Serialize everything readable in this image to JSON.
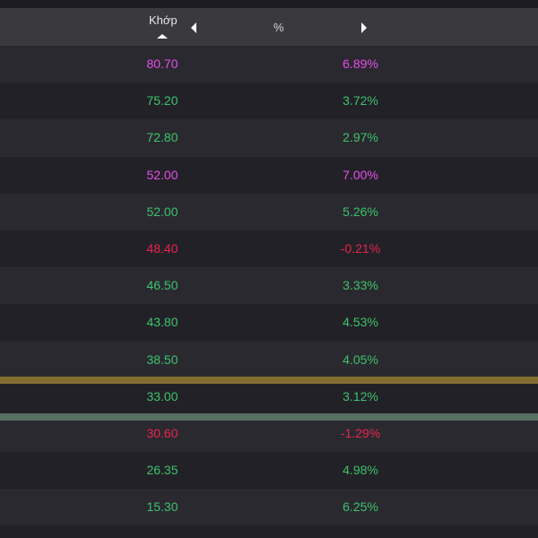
{
  "header": {
    "khop_label": "Khớp",
    "pct_label": "%"
  },
  "rows": [
    {
      "price": "80.70",
      "pct": "6.89%",
      "status": "ceil"
    },
    {
      "price": "75.20",
      "pct": "3.72%",
      "status": "up"
    },
    {
      "price": "72.80",
      "pct": "2.97%",
      "status": "up"
    },
    {
      "price": "52.00",
      "pct": "7.00%",
      "status": "ceil"
    },
    {
      "price": "52.00",
      "pct": "5.26%",
      "status": "up"
    },
    {
      "price": "48.40",
      "pct": "-0.21%",
      "status": "down"
    },
    {
      "price": "46.50",
      "pct": "3.33%",
      "status": "up"
    },
    {
      "price": "43.80",
      "pct": "4.53%",
      "status": "up"
    },
    {
      "price": "38.50",
      "pct": "4.05%",
      "status": "up"
    },
    {
      "price": "33.00",
      "pct": "3.12%",
      "status": "up"
    },
    {
      "price": "30.60",
      "pct": "-1.29%",
      "status": "down"
    },
    {
      "price": "26.35",
      "pct": "4.98%",
      "status": "up"
    },
    {
      "price": "15.30",
      "pct": "6.25%",
      "status": "up"
    }
  ],
  "colors": {
    "up": "#3cc46a",
    "down": "#e8254b",
    "ceil": "#e64fe6",
    "highlight_gold": "#8d7430",
    "highlight_sage": "#5a7364"
  }
}
